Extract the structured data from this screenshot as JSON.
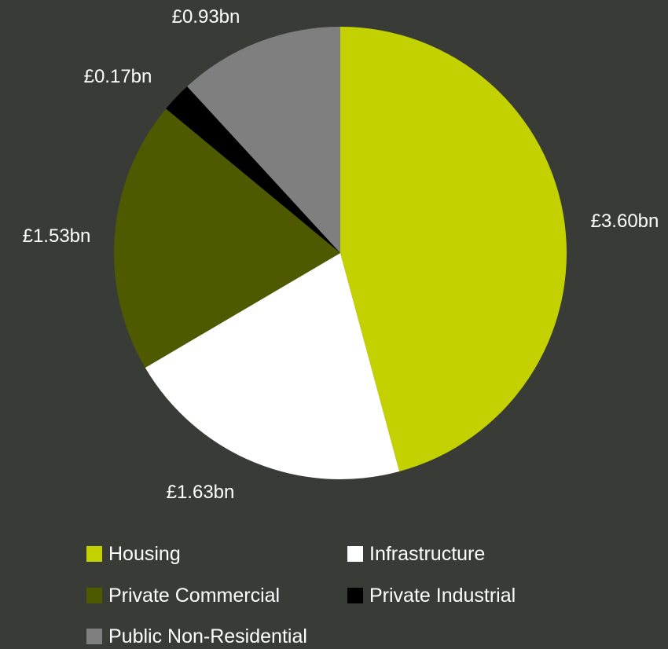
{
  "chart_data": {
    "type": "pie",
    "title": "",
    "categories": [
      "Housing",
      "Infrastructure",
      "Private Commercial",
      "Private Industrial",
      "Public Non-Residential"
    ],
    "values": [
      3.6,
      1.63,
      1.53,
      0.17,
      0.93
    ],
    "data_labels": [
      "£3.60bn",
      "£1.63bn",
      "£1.53bn",
      "£0.17bn",
      "£0.93bn"
    ],
    "colors": [
      "#c3d100",
      "#ffffff",
      "#4f5a00",
      "#000000",
      "#7f7f7f"
    ],
    "start_angle": "12 o'clock",
    "direction": "clockwise",
    "legend_placement": "bottom",
    "legend": [
      {
        "label": "Housing",
        "color": "#c3d100"
      },
      {
        "label": "Infrastructure",
        "color": "#ffffff"
      },
      {
        "label": "Private Commercial",
        "color": "#4f5a00"
      },
      {
        "label": "Private Industrial",
        "color": "#000000"
      },
      {
        "label": "Public Non-Residential",
        "color": "#7f7f7f"
      }
    ]
  },
  "background_color": "#393b36"
}
